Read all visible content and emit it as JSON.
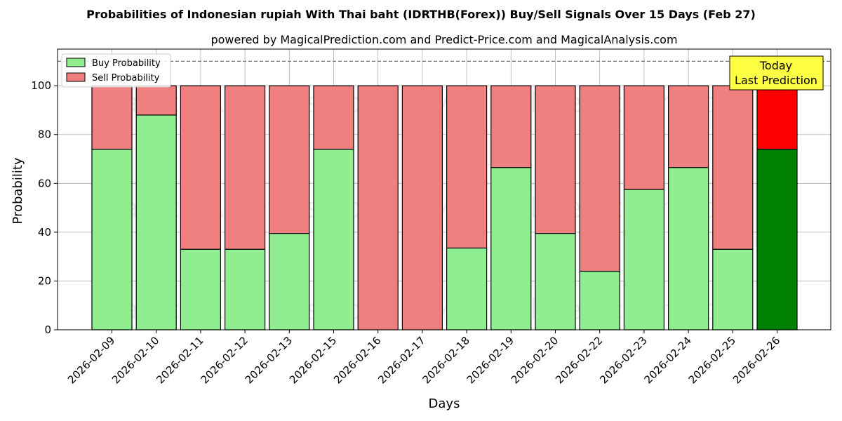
{
  "chart_data": {
    "type": "bar",
    "stacked": true,
    "title": "Probabilities of Indonesian rupiah With Thai baht (IDRTHB(Forex)) Buy/Sell Signals Over 15 Days (Feb 27)",
    "subtitle": "powered by MagicalPrediction.com and Predict-Price.com and MagicalAnalysis.com",
    "xlabel": "Days",
    "ylabel": "Probability",
    "ylim": [
      0,
      115
    ],
    "yticks": [
      0,
      20,
      40,
      60,
      80,
      100
    ],
    "grid": true,
    "legend_position": "top-left",
    "reference_line": 110,
    "categories": [
      "2026-02-09",
      "2026-02-10",
      "2026-02-11",
      "2026-02-12",
      "2026-02-13",
      "2026-02-15",
      "2026-02-16",
      "2026-02-17",
      "2026-02-18",
      "2026-02-19",
      "2026-02-20",
      "2026-02-22",
      "2026-02-23",
      "2026-02-24",
      "2026-02-25",
      "2026-02-26"
    ],
    "series": [
      {
        "name": "Buy Probability",
        "color": "#90ee90",
        "highlight_color": "#008000",
        "values": [
          74,
          88,
          33,
          33,
          39.5,
          74,
          0,
          0,
          33.5,
          66.5,
          39.5,
          24,
          57.5,
          66.5,
          33,
          74
        ]
      },
      {
        "name": "Sell Probability",
        "color": "#f08080",
        "highlight_color": "#ff0000",
        "values": [
          26,
          12,
          67,
          67,
          60.5,
          26,
          100,
          100,
          66.5,
          33.5,
          60.5,
          76,
          42.5,
          33.5,
          67,
          26
        ]
      }
    ],
    "highlight_index": 15,
    "annotation": {
      "lines": [
        "Today",
        "Last Prediction"
      ],
      "color": "#ffff44"
    },
    "watermarks": [
      "MagicalAnalysis.com",
      "MagicalPrediction.com"
    ]
  }
}
